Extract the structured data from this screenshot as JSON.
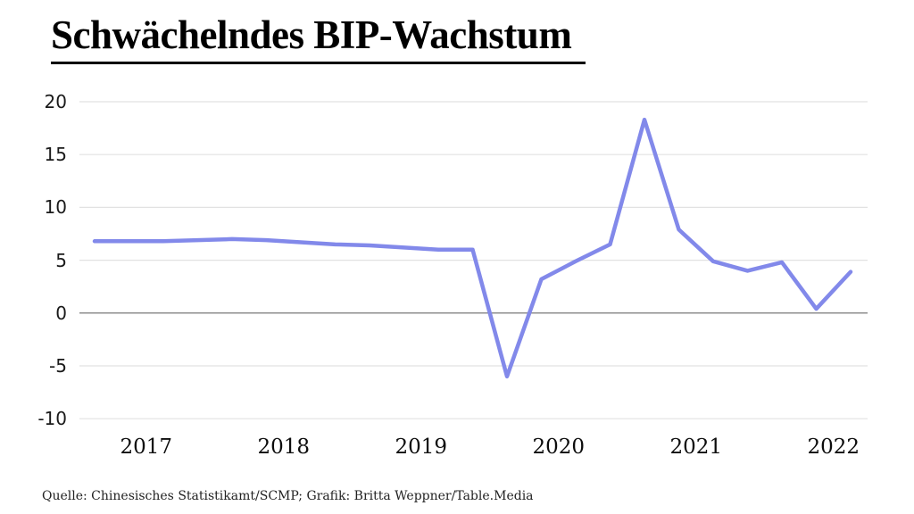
{
  "header": {
    "title": "Schwächelndes BIP-Wachstum"
  },
  "footer": {
    "source": "Quelle: Chinesisches Statistikamt/SCMP; Grafik: Britta Weppner/Table.Media"
  },
  "chart_data": {
    "type": "line",
    "title": "Schwächelndes BIP-Wachstum",
    "x": [
      "Q1 2017",
      "Q2 2017",
      "Q3 2017",
      "Q4 2017",
      "Q1 2018",
      "Q2 2018",
      "Q3 2018",
      "Q4 2018",
      "Q1 2019",
      "Q2 2019",
      "Q3 2019",
      "Q4 2019",
      "Q1 2020",
      "Q2 2020",
      "Q3 2020",
      "Q4 2020",
      "Q1 2021",
      "Q2 2021",
      "Q3 2021",
      "Q4 2021",
      "Q1 2022",
      "Q2 2022",
      "Q3 2022"
    ],
    "values": [
      6.8,
      6.8,
      6.8,
      6.9,
      7.0,
      6.9,
      6.7,
      6.5,
      6.4,
      6.2,
      6.0,
      6.0,
      -6.0,
      3.2,
      4.9,
      6.5,
      18.3,
      7.9,
      4.9,
      4.0,
      4.8,
      0.4,
      3.9
    ],
    "xlabel": "",
    "ylabel": "",
    "ylim": [
      -10,
      20
    ],
    "yticks": [
      20,
      15,
      10,
      5,
      0,
      -5,
      -10
    ],
    "ytick_labels": [
      "20",
      "15",
      "10",
      "5",
      "0",
      "-5",
      "-10"
    ],
    "xtick_labels": [
      "2017",
      "2018",
      "2019",
      "2020",
      "2021",
      "2022"
    ],
    "grid": true,
    "legend": false,
    "colors": {
      "line": "#8289ea",
      "grid": "#e2e2e2",
      "zero_line": "#8f8f8f",
      "title": "#000000",
      "tick_text": "#1a1a1a",
      "source_text": "#222222",
      "background": "#ffffff"
    }
  }
}
